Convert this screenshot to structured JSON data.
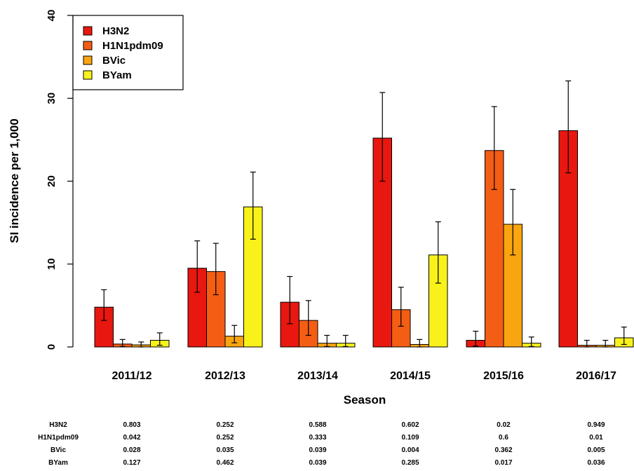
{
  "chart_data": {
    "type": "bar",
    "xlabel": "Season",
    "ylabel": "SI incidence per 1,000",
    "ylim": [
      0,
      40
    ],
    "yticks": [
      0,
      10,
      20,
      30,
      40
    ],
    "categories": [
      "2011/12",
      "2012/13",
      "2013/14",
      "2014/15",
      "2015/16",
      "2016/17"
    ],
    "legend_position": "top-left",
    "series": [
      {
        "name": "H3N2",
        "color": "#e8170f",
        "values": [
          4.8,
          9.5,
          5.4,
          25.2,
          0.8,
          26.1
        ],
        "err_low": [
          3.2,
          6.6,
          2.8,
          20.0,
          0.1,
          21.0
        ],
        "err_high": [
          6.9,
          12.8,
          8.5,
          30.7,
          1.9,
          32.1
        ]
      },
      {
        "name": "H1N1pdm09",
        "color": "#f45d14",
        "values": [
          0.35,
          9.1,
          3.2,
          4.5,
          23.7,
          0.2
        ],
        "err_low": [
          0.05,
          6.3,
          1.4,
          2.5,
          19.0,
          0.0
        ],
        "err_high": [
          0.9,
          12.5,
          5.6,
          7.2,
          29.0,
          0.8
        ]
      },
      {
        "name": "BVic",
        "color": "#f9a50f",
        "values": [
          0.25,
          1.3,
          0.45,
          0.3,
          14.8,
          0.2
        ],
        "err_low": [
          0.0,
          0.5,
          0.05,
          0.0,
          11.1,
          0.0
        ],
        "err_high": [
          0.6,
          2.6,
          1.4,
          0.9,
          19.0,
          0.8
        ]
      },
      {
        "name": "BYam",
        "color": "#f8f21a",
        "values": [
          0.8,
          16.9,
          0.45,
          11.1,
          0.45,
          1.1
        ],
        "err_low": [
          0.2,
          13.0,
          0.05,
          7.7,
          0.05,
          0.3
        ],
        "err_high": [
          1.7,
          21.1,
          1.4,
          15.1,
          1.2,
          2.4
        ]
      }
    ],
    "table": {
      "rows": [
        {
          "label": "H3N2",
          "values": [
            "0.803",
            "0.252",
            "0.588",
            "0.602",
            "0.02",
            "0.949"
          ]
        },
        {
          "label": "H1N1pdm09",
          "values": [
            "0.042",
            "0.252",
            "0.333",
            "0.109",
            "0.6",
            "0.01"
          ]
        },
        {
          "label": "BVic",
          "values": [
            "0.028",
            "0.035",
            "0.039",
            "0.004",
            "0.362",
            "0.005"
          ]
        },
        {
          "label": "BYam",
          "values": [
            "0.127",
            "0.462",
            "0.039",
            "0.285",
            "0.017",
            "0.036"
          ]
        }
      ]
    }
  }
}
